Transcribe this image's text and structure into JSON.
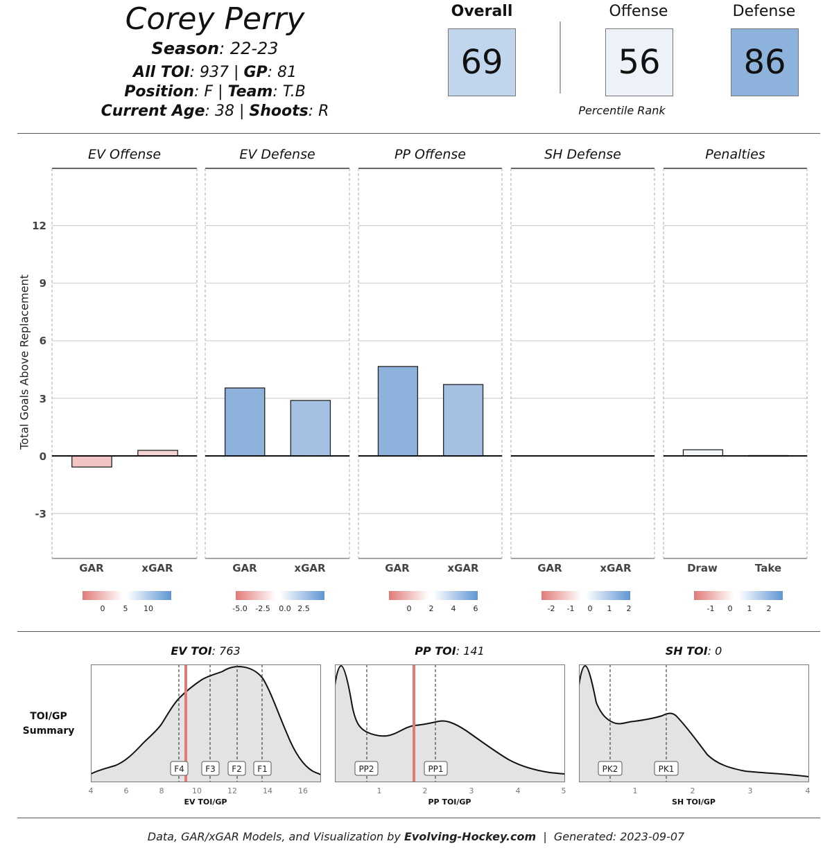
{
  "header": {
    "player_name": "Corey Perry",
    "season_label": "Season",
    "season_value": ": 22-23",
    "toi_label": "All TOI",
    "toi_value": ": 937 | ",
    "gp_label": "GP",
    "gp_value": ": 81",
    "position_label": "Position",
    "position_value": ": F | ",
    "team_label": "Team",
    "team_value": ": T.B",
    "age_label": "Current Age",
    "age_value": ": 38 | ",
    "shoots_label": "Shoots",
    "shoots_value": ": R"
  },
  "ranks": {
    "overall": {
      "label": "Overall",
      "value": "69",
      "color": "#c1d6ec"
    },
    "offense": {
      "label": "Offense",
      "value": "56",
      "color": "#edf2f9"
    },
    "defense": {
      "label": "Defense",
      "value": "86",
      "color": "#8db2dc"
    },
    "caption": "Percentile Rank"
  },
  "chart_data": [
    {
      "type": "bar",
      "title": "GAR / xGAR by component",
      "ylabel": "Total Goals Above Replacement",
      "ylim": [
        -4.5,
        14.7
      ],
      "yticks": [
        -3,
        0,
        3,
        6,
        9,
        12
      ],
      "facets": [
        {
          "title": "EV Offense",
          "categories": [
            "GAR",
            "xGAR"
          ],
          "values": [
            -0.58,
            0.29
          ],
          "colors": [
            "#f2c4c3",
            "#f5d3d2"
          ],
          "legend_ticks": [
            "0",
            "5",
            "10"
          ]
        },
        {
          "title": "EV Defense",
          "categories": [
            "GAR",
            "xGAR"
          ],
          "values": [
            3.54,
            2.89
          ],
          "colors": [
            "#8db2dc",
            "#a4c1e4"
          ],
          "legend_ticks": [
            "-5.0",
            "-2.5",
            "0.0",
            "2.5"
          ]
        },
        {
          "title": "PP Offense",
          "categories": [
            "GAR",
            "xGAR"
          ],
          "values": [
            4.66,
            3.72
          ],
          "colors": [
            "#8db2dc",
            "#a4c1e4"
          ],
          "legend_ticks": [
            "0",
            "2",
            "4",
            "6"
          ]
        },
        {
          "title": "SH Defense",
          "categories": [
            "GAR",
            "xGAR"
          ],
          "values": [
            0,
            0
          ],
          "colors": [
            "#ffffff",
            "#ffffff"
          ],
          "legend_ticks": [
            "-2",
            "-1",
            "0",
            "1",
            "2"
          ]
        },
        {
          "title": "Penalties",
          "categories": [
            "Draw",
            "Take"
          ],
          "values": [
            0.32,
            0.02
          ],
          "colors": [
            "#f4f7fb",
            "#ffffff"
          ],
          "legend_ticks": [
            "-1",
            "0",
            "1",
            "2"
          ]
        }
      ]
    },
    {
      "type": "area",
      "title_label": "EV TOI",
      "title_value": ": 763",
      "xlabel": "EV TOI/GP",
      "xlim": [
        4,
        17
      ],
      "xticks": [
        "4",
        "6",
        "8",
        "10",
        "12",
        "14",
        "16"
      ],
      "player_value": 9.4,
      "markers": [
        {
          "label": "F4",
          "x": 9.0
        },
        {
          "label": "F3",
          "x": 10.8
        },
        {
          "label": "F2",
          "x": 12.3
        },
        {
          "label": "F1",
          "x": 13.7
        }
      ]
    },
    {
      "type": "area",
      "title_label": "PP TOI",
      "title_value": ": 141",
      "xlabel": "PP TOI/GP",
      "xlim": [
        0,
        5
      ],
      "xticks": [
        "1",
        "2",
        "3",
        "4",
        "5"
      ],
      "player_value": 1.73,
      "markers": [
        {
          "label": "PP2",
          "x": 0.72
        },
        {
          "label": "PP1",
          "x": 2.22
        }
      ]
    },
    {
      "type": "area",
      "title_label": "SH TOI",
      "title_value": ": 0",
      "xlabel": "SH TOI/GP",
      "xlim": [
        0,
        4
      ],
      "xticks": [
        "1",
        "2",
        "3",
        "4"
      ],
      "player_value": null,
      "markers": [
        {
          "label": "PK2",
          "x": 0.55
        },
        {
          "label": "PK1",
          "x": 1.52
        }
      ]
    }
  ],
  "toi_summary_label_1": "TOI/GP",
  "toi_summary_label_2": "Summary",
  "footer": {
    "prefix": "Data, GAR/xGAR Models, and Visualization by ",
    "brand": "Evolving-Hockey.com",
    "suffix": "  |  Generated: 2023-09-07"
  }
}
